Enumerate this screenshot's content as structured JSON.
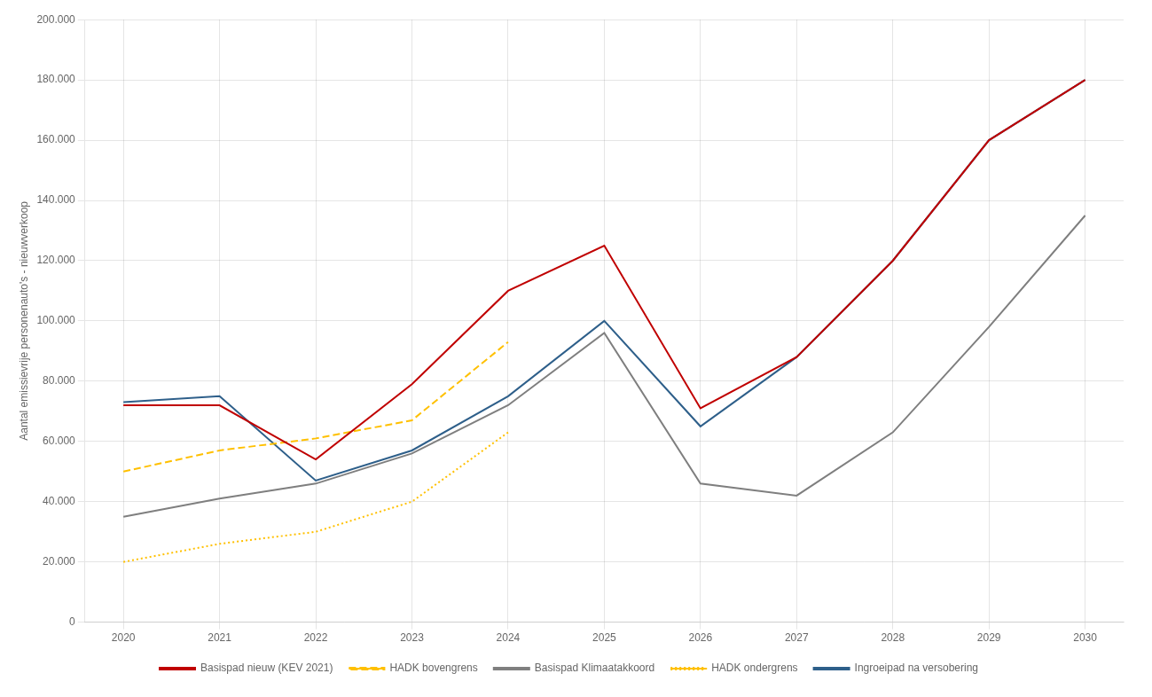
{
  "chart_data": {
    "type": "line",
    "x": [
      2020,
      2021,
      2022,
      2023,
      2024,
      2025,
      2026,
      2027,
      2028,
      2029,
      2030
    ],
    "xlim": [
      2019.6,
      2030.4
    ],
    "xticks": [
      2020,
      2021,
      2022,
      2023,
      2024,
      2025,
      2026,
      2027,
      2028,
      2029,
      2030
    ],
    "ylim": [
      0,
      200000
    ],
    "yticks": [
      0,
      {
        "value": 20000,
        "label": "20.000"
      },
      {
        "value": 40000,
        "label": "40.000"
      },
      {
        "value": 60000,
        "label": "60.000"
      },
      {
        "value": 80000,
        "label": "80.000"
      },
      {
        "value": 100000,
        "label": "100.000"
      },
      {
        "value": 120000,
        "label": "120.000"
      },
      {
        "value": 140000,
        "label": "140.000"
      },
      {
        "value": 160000,
        "label": "160.000"
      },
      {
        "value": 180000,
        "label": "180.000"
      },
      {
        "value": 200000,
        "label": "200.000"
      }
    ],
    "y_label": "Aantal emissievrije personenauto's - nieuwverkoop",
    "grid": true,
    "legend": "bottom",
    "series": [
      {
        "name": "Basispad nieuw (KEV 2021)",
        "color": "#c00000",
        "line_style": "solid",
        "values": [
          72000,
          72000,
          54000,
          79000,
          110000,
          125000,
          71000,
          88000,
          120000,
          160000,
          180000
        ]
      },
      {
        "name": "HADK bovengrens",
        "color": "#ffc000",
        "line_style": "dashed",
        "values": [
          50000,
          57000,
          61000,
          67000,
          93000,
          null,
          null,
          null,
          null,
          null,
          null
        ]
      },
      {
        "name": "Basispad Klimaatakkoord",
        "color": "#7f7f7f",
        "line_style": "solid",
        "values": [
          35000,
          41000,
          46000,
          56000,
          72000,
          96000,
          46000,
          42000,
          63000,
          98000,
          135000
        ]
      },
      {
        "name": "HADK ondergrens",
        "color": "#ffc000",
        "line_style": "dotted",
        "values": [
          20000,
          26000,
          30000,
          40000,
          63000,
          null,
          null,
          null,
          null,
          null,
          null
        ]
      },
      {
        "name": "Ingroeipad na versobering",
        "color": "#2e5f8a",
        "line_style": "solid",
        "values": [
          73000,
          75000,
          47000,
          57000,
          75000,
          100000,
          65000,
          88000,
          120000,
          160000,
          180000
        ]
      }
    ]
  }
}
